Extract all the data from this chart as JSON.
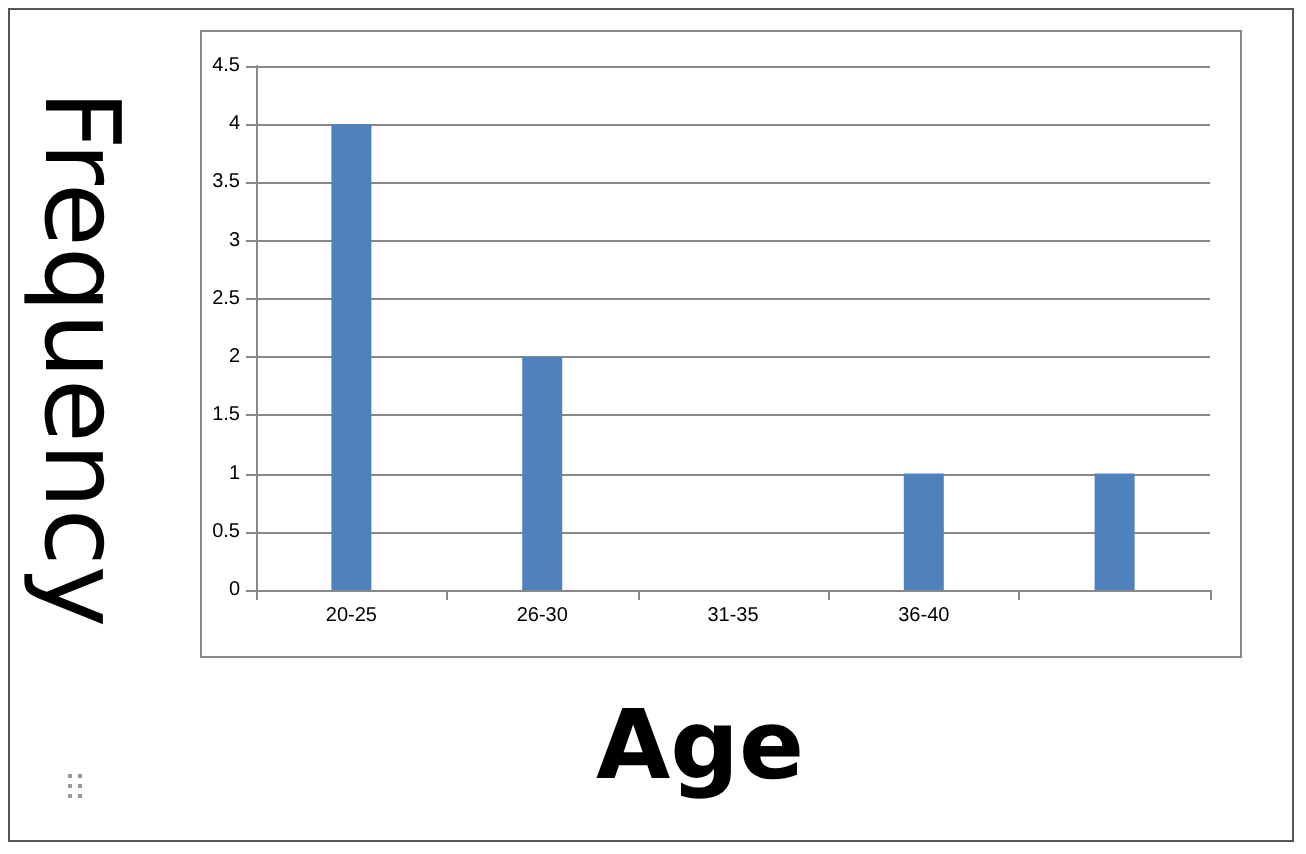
{
  "chart_data": {
    "type": "bar",
    "xlabel": "Age",
    "ylabel": "Frequency",
    "categories": [
      "20-25",
      "26-30",
      "31-35",
      "36-40",
      null
    ],
    "values": [
      4,
      2,
      0,
      1,
      1
    ],
    "color": "#4f81bd",
    "ylim": [
      0,
      4.5
    ],
    "yticks": [
      0,
      0.5,
      1,
      1.5,
      2,
      2.5,
      3,
      3.5,
      4,
      4.5
    ],
    "grid": "y"
  }
}
